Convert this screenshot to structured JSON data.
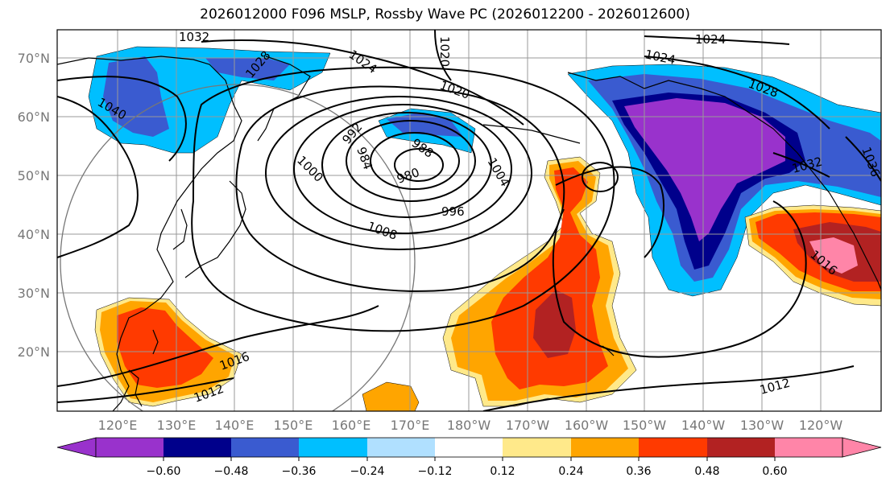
{
  "title": "2026012000 F096 MSLP, Rossby Wave PC (2026012200 - 2026012600)",
  "lat_labels": [
    "70°N",
    "60°N",
    "50°N",
    "40°N",
    "30°N",
    "20°N"
  ],
  "lon_labels": [
    "120°E",
    "130°E",
    "140°E",
    "150°E",
    "160°E",
    "170°E",
    "180°W",
    "170°W",
    "160°W",
    "150°W",
    "140°W",
    "130°W",
    "120°W"
  ],
  "contour_labels": {
    "c1032a": "1032",
    "c1020": "1020",
    "c1024a": "1024",
    "c1024b": "1024",
    "c1024c": "1024",
    "c1028a": "1028",
    "c1028b": "1028",
    "c1040": "1040",
    "c1020b": "1020",
    "c992": "992",
    "c988": "988",
    "c984": "984",
    "c980": "980",
    "c1000": "1000",
    "c1004": "1004",
    "c996": "996",
    "c1008": "1008",
    "c1016": "1016",
    "c1012a": "1012",
    "c1012b": "1012",
    "c1032b": "1032",
    "c1036": "1036",
    "c1016b": "1016"
  },
  "colorbar": {
    "ticks": [
      "−0.60",
      "−0.48",
      "−0.36",
      "−0.24",
      "−0.12",
      "0.12",
      "0.24",
      "0.36",
      "0.48",
      "0.60"
    ],
    "colors": [
      "#9932cc",
      "#00008b",
      "#3a5bd0",
      "#00bfff",
      "#b0e0ff",
      "#ffffff",
      "#ffe98a",
      "#ffa500",
      "#ff3a00",
      "#b22222",
      "#ff85a8"
    ]
  },
  "legend_colors": {
    "purple": "#9932cc",
    "navy": "#00008b",
    "blue": "#3a5bd0",
    "cyan": "#00bfff",
    "lightblue": "#b0e0ff",
    "yellow": "#ffe98a",
    "orange": "#ffa500",
    "redorange": "#ff3a00",
    "darkred": "#b22222",
    "pink": "#ff85a8"
  }
}
